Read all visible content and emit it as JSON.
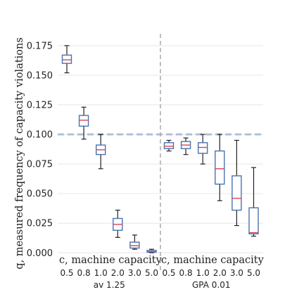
{
  "chart_data": {
    "type": "box",
    "ylabel": "q, measured frequency of capacity violations",
    "ylim": [
      -0.004,
      0.185
    ],
    "yticks": [
      "0.000",
      "0.025",
      "0.050",
      "0.075",
      "0.100",
      "0.125",
      "0.150",
      "0.175"
    ],
    "threshold": 0.1,
    "grid": true,
    "colors": {
      "box": "#4a72b0",
      "median": "#d6455a",
      "threshold": "#aec0e0",
      "divider": "#aaaaaa",
      "grid": "#e6e6e6"
    },
    "groups": [
      {
        "name": "av 1.25",
        "inner_label": "c, machine capacity",
        "categories": [
          "0.5",
          "0.8",
          "1.0",
          "2.0",
          "3.0",
          "5.0"
        ],
        "boxes": [
          {
            "whislo": 0.152,
            "q1": 0.16,
            "med": 0.163,
            "q3": 0.167,
            "whishi": 0.175
          },
          {
            "whislo": 0.096,
            "q1": 0.107,
            "med": 0.112,
            "q3": 0.116,
            "whishi": 0.123
          },
          {
            "whislo": 0.071,
            "q1": 0.083,
            "med": 0.087,
            "q3": 0.091,
            "whishi": 0.1
          },
          {
            "whislo": 0.013,
            "q1": 0.019,
            "med": 0.024,
            "q3": 0.029,
            "whishi": 0.036
          },
          {
            "whislo": 0.003,
            "q1": 0.004,
            "med": 0.006,
            "q3": 0.009,
            "whishi": 0.015
          },
          {
            "whislo": 0.0,
            "q1": 0.0005,
            "med": 0.001,
            "q3": 0.002,
            "whishi": 0.003
          }
        ]
      },
      {
        "name": "GPA 0.01",
        "inner_label": "c, machine capacity",
        "categories": [
          "0.5",
          "0.8",
          "1.0",
          "2.0",
          "3.0",
          "5.0"
        ],
        "boxes": [
          {
            "whislo": 0.086,
            "q1": 0.088,
            "med": 0.09,
            "q3": 0.093,
            "whishi": 0.095
          },
          {
            "whislo": 0.083,
            "q1": 0.088,
            "med": 0.091,
            "q3": 0.094,
            "whishi": 0.097
          },
          {
            "whislo": 0.075,
            "q1": 0.084,
            "med": 0.089,
            "q3": 0.093,
            "whishi": 0.1
          },
          {
            "whislo": 0.044,
            "q1": 0.058,
            "med": 0.071,
            "q3": 0.086,
            "whishi": 0.1
          },
          {
            "whislo": 0.023,
            "q1": 0.036,
            "med": 0.046,
            "q3": 0.065,
            "whishi": 0.095
          },
          {
            "whislo": 0.014,
            "q1": 0.016,
            "med": 0.017,
            "q3": 0.038,
            "whishi": 0.072
          }
        ]
      }
    ]
  }
}
